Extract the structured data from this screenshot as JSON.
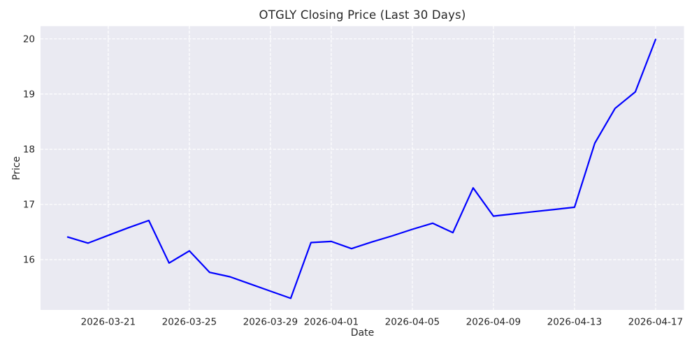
{
  "chart_data": {
    "type": "line",
    "title": "OTGLY Closing Price (Last 30 Days)",
    "xlabel": "Date",
    "ylabel": "Price",
    "x": [
      "2026-03-19",
      "2026-03-20",
      "2026-03-21",
      "2026-03-22",
      "2026-03-23",
      "2026-03-24",
      "2026-03-25",
      "2026-03-26",
      "2026-03-27",
      "2026-03-28",
      "2026-03-29",
      "2026-03-30",
      "2026-03-31",
      "2026-04-01",
      "2026-04-02",
      "2026-04-03",
      "2026-04-04",
      "2026-04-05",
      "2026-04-06",
      "2026-04-07",
      "2026-04-08",
      "2026-04-09",
      "2026-04-10",
      "2026-04-11",
      "2026-04-12",
      "2026-04-13",
      "2026-04-14",
      "2026-04-15",
      "2026-04-16",
      "2026-04-17"
    ],
    "values": [
      16.41,
      16.3,
      16.44,
      16.58,
      16.71,
      15.94,
      16.16,
      15.77,
      15.69,
      15.56,
      15.43,
      15.3,
      16.31,
      16.33,
      16.2,
      16.32,
      16.43,
      16.55,
      16.66,
      16.49,
      17.3,
      16.79,
      16.83,
      16.87,
      16.91,
      16.95,
      18.11,
      18.74,
      19.04,
      19.99
    ],
    "x_tick_labels": [
      "2026-03-21",
      "2026-03-25",
      "2026-03-29",
      "2026-04-01",
      "2026-04-05",
      "2026-04-09",
      "2026-04-13",
      "2026-04-17"
    ],
    "y_tick_labels": [
      "16",
      "17",
      "18",
      "19",
      "20"
    ],
    "y_ticks": [
      16,
      17,
      18,
      19,
      20
    ],
    "ylim": [
      15.09,
      20.23
    ],
    "x_index_range": [
      -1.34,
      30.4
    ],
    "grid": true,
    "grid_style": "dashed",
    "legend": "none",
    "colors": {
      "line": "#0000ff",
      "plot_background": "#eaeaf2",
      "figure_background": "#ffffff",
      "gridline": "#ffffff",
      "text": "#262626"
    }
  }
}
